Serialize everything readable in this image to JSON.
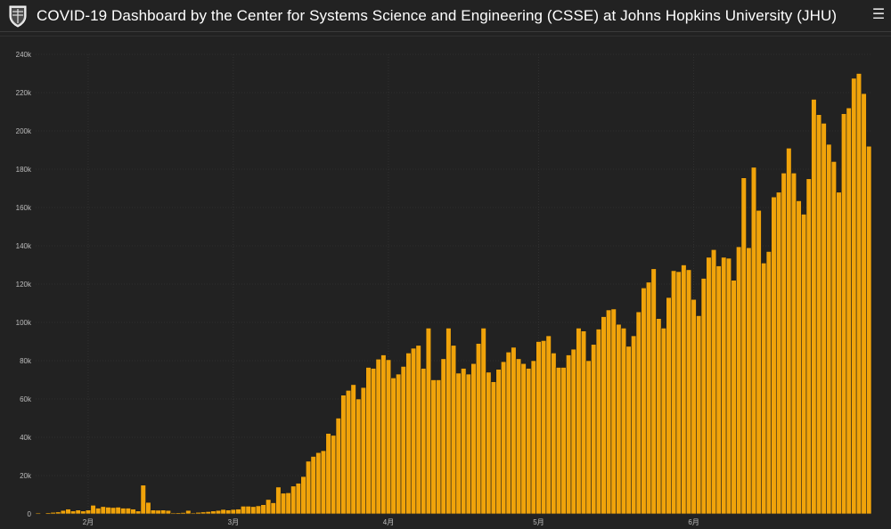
{
  "header": {
    "title": "COVID-19 Dashboard by the Center for Systems Science and Engineering (CSSE) at Johns Hopkins University (JHU)",
    "logo_icon": "jhu-shield-icon",
    "menu_icon": "hamburger-menu-icon"
  },
  "colors": {
    "background": "#222222",
    "bar": "#f0a30a",
    "bar_stroke": "#1e1e1e",
    "grid": "#3b3b3b",
    "text": "#bdbdbd"
  },
  "chart_data": {
    "type": "bar",
    "title": "",
    "xlabel": "",
    "ylabel": "",
    "ylim": [
      0,
      240000
    ],
    "yticks": [
      {
        "value": 0,
        "label": "0"
      },
      {
        "value": 20000,
        "label": "20k"
      },
      {
        "value": 40000,
        "label": "40k"
      },
      {
        "value": 60000,
        "label": "60k"
      },
      {
        "value": 80000,
        "label": "80k"
      },
      {
        "value": 100000,
        "label": "100k"
      },
      {
        "value": 120000,
        "label": "120k"
      },
      {
        "value": 140000,
        "label": "140k"
      },
      {
        "value": 160000,
        "label": "160k"
      },
      {
        "value": 180000,
        "label": "180k"
      },
      {
        "value": 200000,
        "label": "200k"
      },
      {
        "value": 220000,
        "label": "220k"
      },
      {
        "value": 240000,
        "label": "240k"
      }
    ],
    "xticks": [
      {
        "index": 10,
        "label": "2月"
      },
      {
        "index": 39,
        "label": "3月"
      },
      {
        "index": 70,
        "label": "4月"
      },
      {
        "index": 100,
        "label": "5月"
      },
      {
        "index": 131,
        "label": "6月"
      }
    ],
    "grid": true,
    "legend": "none",
    "x_start": "2020-01-22",
    "values": [
      500,
      100,
      600,
      800,
      1000,
      1800,
      2500,
      1500,
      2000,
      1500,
      2000,
      4500,
      3000,
      3800,
      3500,
      3300,
      3500,
      3000,
      3000,
      2500,
      1500,
      15000,
      6000,
      2000,
      1900,
      2000,
      1800,
      500,
      600,
      700,
      1800,
      500,
      800,
      1000,
      1200,
      1500,
      1800,
      2300,
      2000,
      2300,
      2500,
      4000,
      4000,
      3800,
      4200,
      4800,
      7500,
      5800,
      14000,
      10800,
      11000,
      14500,
      16000,
      19500,
      27500,
      30000,
      32000,
      33000,
      42000,
      41000,
      50000,
      62000,
      64500,
      67500,
      60000,
      66000,
      76500,
      76000,
      80800,
      83000,
      80500,
      71000,
      73000,
      77000,
      84000,
      86500,
      88000,
      76000,
      97000,
      70000,
      70000,
      81000,
      97000,
      88000,
      73500,
      76000,
      73000,
      78500,
      89000,
      97000,
      74000,
      69000,
      75500,
      79500,
      84500,
      87000,
      81000,
      78500,
      76000,
      80000,
      90000,
      90500,
      93000,
      84000,
      76500,
      76500,
      83000,
      86000,
      97000,
      95500,
      80000,
      88500,
      96500,
      103000,
      106500,
      107000,
      99000,
      97000,
      87500,
      93000,
      105500,
      118000,
      121000,
      128000,
      102000,
      97000,
      113000,
      127000,
      126500,
      130000,
      127500,
      112000,
      103500,
      123000,
      134000,
      138000,
      129500,
      134000,
      133500,
      122000,
      139500,
      175500,
      139000,
      181000,
      158500,
      131000,
      137000,
      165500,
      168000,
      178000,
      191000,
      178000,
      163500,
      156500,
      175000,
      216500,
      208500,
      204000,
      193000,
      184000,
      168000,
      209000,
      212000,
      227500,
      230000,
      219500,
      192000
    ]
  }
}
